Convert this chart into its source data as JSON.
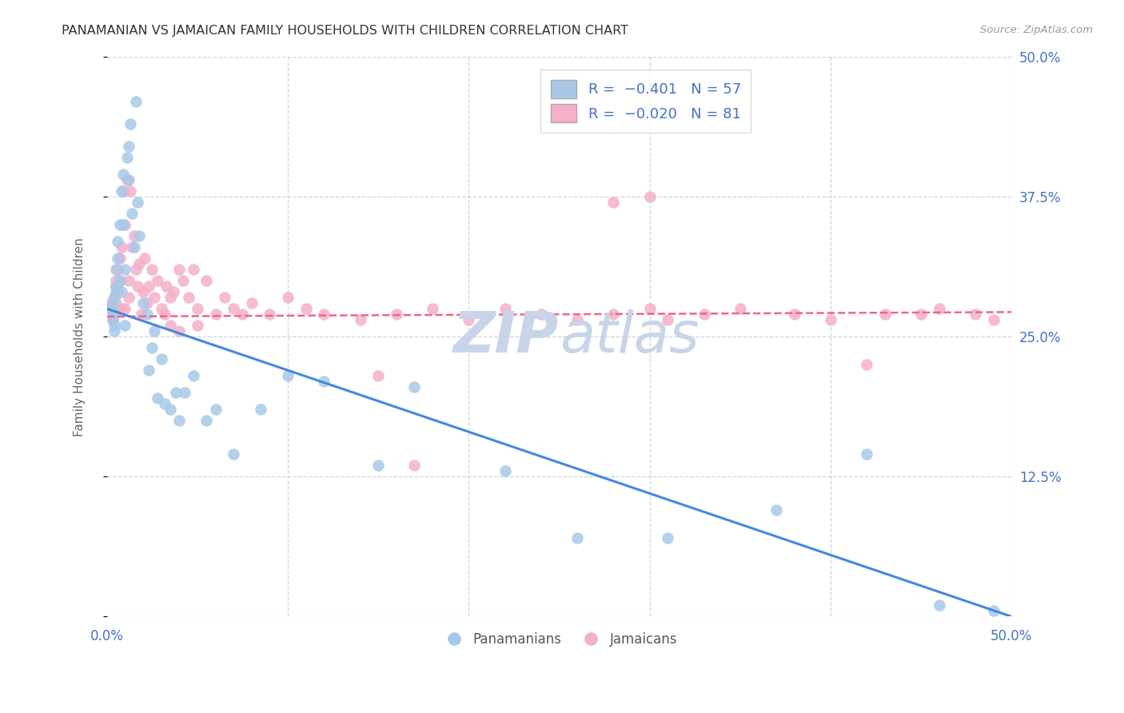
{
  "title": "PANAMANIAN VS JAMAICAN FAMILY HOUSEHOLDS WITH CHILDREN CORRELATION CHART",
  "source": "Source: ZipAtlas.com",
  "ylabel": "Family Households with Children",
  "xlim": [
    0.0,
    0.5
  ],
  "ylim": [
    0.0,
    0.5
  ],
  "xticks": [
    0.0,
    0.1,
    0.2,
    0.3,
    0.4,
    0.5
  ],
  "yticks": [
    0.0,
    0.125,
    0.25,
    0.375,
    0.5
  ],
  "xticklabels": [
    "0.0%",
    "",
    "",
    "",
    "",
    "50.0%"
  ],
  "yticklabels_right": [
    "",
    "12.5%",
    "25.0%",
    "37.5%",
    "50.0%"
  ],
  "pan_color": "#a8c8e8",
  "jam_color": "#f4b0c8",
  "pan_line_color": "#4488dd",
  "jam_line_color": "#ee6688",
  "grid_color": "#c8d4e8",
  "background_color": "#ffffff",
  "tick_color": "#4472c4",
  "watermark_color": "#c8d4e8",
  "legend_pan_label": "Panamanians",
  "legend_jam_label": "Jamaicans",
  "pan_x": [
    0.002,
    0.003,
    0.003,
    0.004,
    0.004,
    0.004,
    0.004,
    0.005,
    0.005,
    0.005,
    0.006,
    0.006,
    0.007,
    0.007,
    0.008,
    0.008,
    0.009,
    0.009,
    0.01,
    0.01,
    0.011,
    0.012,
    0.012,
    0.013,
    0.014,
    0.015,
    0.016,
    0.017,
    0.018,
    0.02,
    0.022,
    0.023,
    0.025,
    0.026,
    0.028,
    0.03,
    0.032,
    0.035,
    0.038,
    0.04,
    0.043,
    0.048,
    0.055,
    0.06,
    0.07,
    0.085,
    0.1,
    0.12,
    0.15,
    0.17,
    0.22,
    0.26,
    0.31,
    0.37,
    0.42,
    0.46,
    0.49
  ],
  "pan_y": [
    0.275,
    0.28,
    0.265,
    0.27,
    0.26,
    0.255,
    0.285,
    0.29,
    0.295,
    0.31,
    0.32,
    0.335,
    0.35,
    0.3,
    0.38,
    0.29,
    0.395,
    0.35,
    0.31,
    0.26,
    0.41,
    0.42,
    0.39,
    0.44,
    0.36,
    0.33,
    0.46,
    0.37,
    0.34,
    0.28,
    0.27,
    0.22,
    0.24,
    0.255,
    0.195,
    0.23,
    0.19,
    0.185,
    0.2,
    0.175,
    0.2,
    0.215,
    0.175,
    0.185,
    0.145,
    0.185,
    0.215,
    0.21,
    0.135,
    0.205,
    0.13,
    0.07,
    0.07,
    0.095,
    0.145,
    0.01,
    0.005
  ],
  "jam_x": [
    0.002,
    0.003,
    0.003,
    0.004,
    0.004,
    0.005,
    0.005,
    0.005,
    0.006,
    0.006,
    0.007,
    0.007,
    0.008,
    0.008,
    0.009,
    0.01,
    0.01,
    0.011,
    0.012,
    0.012,
    0.013,
    0.014,
    0.015,
    0.016,
    0.017,
    0.018,
    0.019,
    0.02,
    0.021,
    0.022,
    0.023,
    0.025,
    0.026,
    0.028,
    0.03,
    0.032,
    0.033,
    0.035,
    0.037,
    0.04,
    0.042,
    0.045,
    0.048,
    0.05,
    0.055,
    0.06,
    0.065,
    0.07,
    0.075,
    0.08,
    0.09,
    0.1,
    0.11,
    0.12,
    0.14,
    0.16,
    0.18,
    0.2,
    0.22,
    0.24,
    0.26,
    0.28,
    0.3,
    0.31,
    0.33,
    0.35,
    0.38,
    0.4,
    0.43,
    0.46,
    0.48,
    0.49,
    0.035,
    0.04,
    0.05,
    0.28,
    0.3,
    0.15,
    0.17,
    0.45,
    0.42
  ],
  "jam_y": [
    0.28,
    0.27,
    0.265,
    0.275,
    0.285,
    0.295,
    0.28,
    0.3,
    0.31,
    0.29,
    0.32,
    0.3,
    0.33,
    0.275,
    0.38,
    0.35,
    0.275,
    0.39,
    0.3,
    0.285,
    0.38,
    0.33,
    0.34,
    0.31,
    0.295,
    0.315,
    0.27,
    0.29,
    0.32,
    0.28,
    0.295,
    0.31,
    0.285,
    0.3,
    0.275,
    0.27,
    0.295,
    0.285,
    0.29,
    0.31,
    0.3,
    0.285,
    0.31,
    0.275,
    0.3,
    0.27,
    0.285,
    0.275,
    0.27,
    0.28,
    0.27,
    0.285,
    0.275,
    0.27,
    0.265,
    0.27,
    0.275,
    0.265,
    0.275,
    0.27,
    0.265,
    0.27,
    0.275,
    0.265,
    0.27,
    0.275,
    0.27,
    0.265,
    0.27,
    0.275,
    0.27,
    0.265,
    0.26,
    0.255,
    0.26,
    0.37,
    0.375,
    0.215,
    0.135,
    0.27,
    0.225
  ]
}
